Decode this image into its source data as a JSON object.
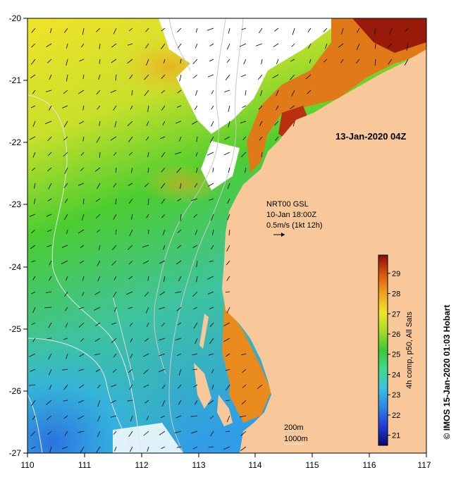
{
  "map": {
    "date_label": "13-Jan-2020 04Z",
    "current_info": {
      "line1": "NRT00 GSL",
      "line2": "10-Jan 18:00Z",
      "line3": "0.5m/s (1kt 12h)"
    },
    "depth_labels": {
      "d200": "200m",
      "d1000": "1000m"
    },
    "x_ticks": [
      "110",
      "111",
      "112",
      "113",
      "114",
      "115",
      "116",
      "117"
    ],
    "y_ticks": [
      "-20",
      "-21",
      "-22",
      "-23",
      "-24",
      "-25",
      "-26",
      "-27"
    ]
  },
  "colorbar": {
    "title": "4h comp, p50, All Sats",
    "ticks": [
      "21",
      "22",
      "23",
      "24",
      "25",
      "26",
      "27",
      "28",
      "29"
    ],
    "range": [
      20.5,
      29.9
    ],
    "colors": [
      "#0a0a6e",
      "#1f3bd8",
      "#2c86e6",
      "#39c2e0",
      "#43d98e",
      "#3ac83a",
      "#a8dc28",
      "#f2e22a",
      "#f0a020",
      "#d8560e",
      "#8b0d08"
    ]
  },
  "credit": "© IMOS 15-Jan-2020 01:03 Hobart",
  "colors": {
    "land": "#f9c89a",
    "cloud": "#ffffff"
  }
}
